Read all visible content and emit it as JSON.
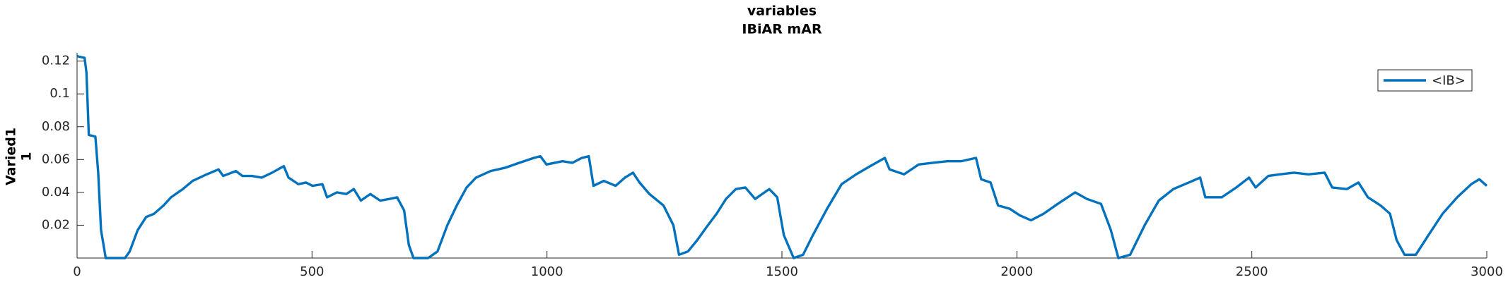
{
  "chart_data": {
    "type": "line",
    "title": [
      "variables",
      "IBiAR mAR"
    ],
    "ylabel": [
      "Varied1",
      "1"
    ],
    "x": [
      0,
      16,
      20,
      25,
      39,
      45,
      51,
      61,
      102,
      112,
      129,
      147,
      164,
      184,
      200,
      225,
      246,
      276,
      301,
      311,
      338,
      352,
      372,
      393,
      415,
      440,
      450,
      471,
      487,
      501,
      522,
      532,
      553,
      573,
      589,
      604,
      624,
      645,
      665,
      681,
      696,
      706,
      716,
      747,
      767,
      788,
      808,
      829,
      849,
      880,
      911,
      941,
      972,
      986,
      999,
      1033,
      1054,
      1074,
      1089,
      1099,
      1121,
      1146,
      1166,
      1183,
      1197,
      1218,
      1248,
      1269,
      1281,
      1300,
      1320,
      1340,
      1361,
      1381,
      1402,
      1422,
      1443,
      1473,
      1490,
      1504,
      1525,
      1545,
      1566,
      1596,
      1627,
      1658,
      1688,
      1719,
      1729,
      1760,
      1791,
      1821,
      1852,
      1882,
      1913,
      1924,
      1944,
      1960,
      1985,
      2006,
      2030,
      2057,
      2087,
      2124,
      2149,
      2179,
      2200,
      2216,
      2241,
      2272,
      2302,
      2333,
      2374,
      2390,
      2401,
      2436,
      2467,
      2494,
      2508,
      2535,
      2559,
      2590,
      2620,
      2655,
      2671,
      2702,
      2727,
      2747,
      2774,
      2794,
      2808,
      2825,
      2849,
      2876,
      2906,
      2937,
      2967,
      2984,
      3000
    ],
    "series": [
      {
        "name": "<IB>",
        "color": "#0072BD",
        "values": [
          0.123,
          0.122,
          0.113,
          0.075,
          0.074,
          0.052,
          0.017,
          0,
          0,
          0.004,
          0.017,
          0.025,
          0.027,
          0.032,
          0.037,
          0.042,
          0.047,
          0.051,
          0.054,
          0.05,
          0.053,
          0.05,
          0.05,
          0.049,
          0.052,
          0.056,
          0.049,
          0.045,
          0.046,
          0.044,
          0.045,
          0.037,
          0.04,
          0.039,
          0.042,
          0.035,
          0.039,
          0.035,
          0.036,
          0.037,
          0.029,
          0.008,
          0,
          0,
          0.004,
          0.02,
          0.032,
          0.043,
          0.049,
          0.053,
          0.055,
          0.058,
          0.061,
          0.062,
          0.057,
          0.059,
          0.058,
          0.061,
          0.062,
          0.044,
          0.047,
          0.044,
          0.049,
          0.052,
          0.046,
          0.039,
          0.032,
          0.02,
          0.002,
          0.004,
          0.011,
          0.019,
          0.027,
          0.036,
          0.042,
          0.043,
          0.036,
          0.042,
          0.037,
          0.014,
          0,
          0.002,
          0.014,
          0.03,
          0.045,
          0.051,
          0.056,
          0.061,
          0.054,
          0.051,
          0.057,
          0.058,
          0.059,
          0.059,
          0.061,
          0.048,
          0.046,
          0.032,
          0.03,
          0.026,
          0.023,
          0.027,
          0.033,
          0.04,
          0.036,
          0.033,
          0.017,
          0,
          0.002,
          0.02,
          0.035,
          0.042,
          0.047,
          0.049,
          0.037,
          0.037,
          0.043,
          0.049,
          0.043,
          0.05,
          0.051,
          0.052,
          0.051,
          0.052,
          0.043,
          0.042,
          0.046,
          0.037,
          0.032,
          0.027,
          0.011,
          0.002,
          0.002,
          0.014,
          0.027,
          0.037,
          0.045,
          0.048,
          0.044
        ]
      }
    ],
    "xlim": [
      0,
      3000
    ],
    "xticks": [
      0,
      500,
      1000,
      1500,
      2000,
      2500,
      3000
    ],
    "ylim": [
      0,
      0.125
    ],
    "yticks": [
      0.02,
      0.04,
      0.06,
      0.08,
      0.1,
      0.12
    ],
    "legend": "northeast"
  }
}
